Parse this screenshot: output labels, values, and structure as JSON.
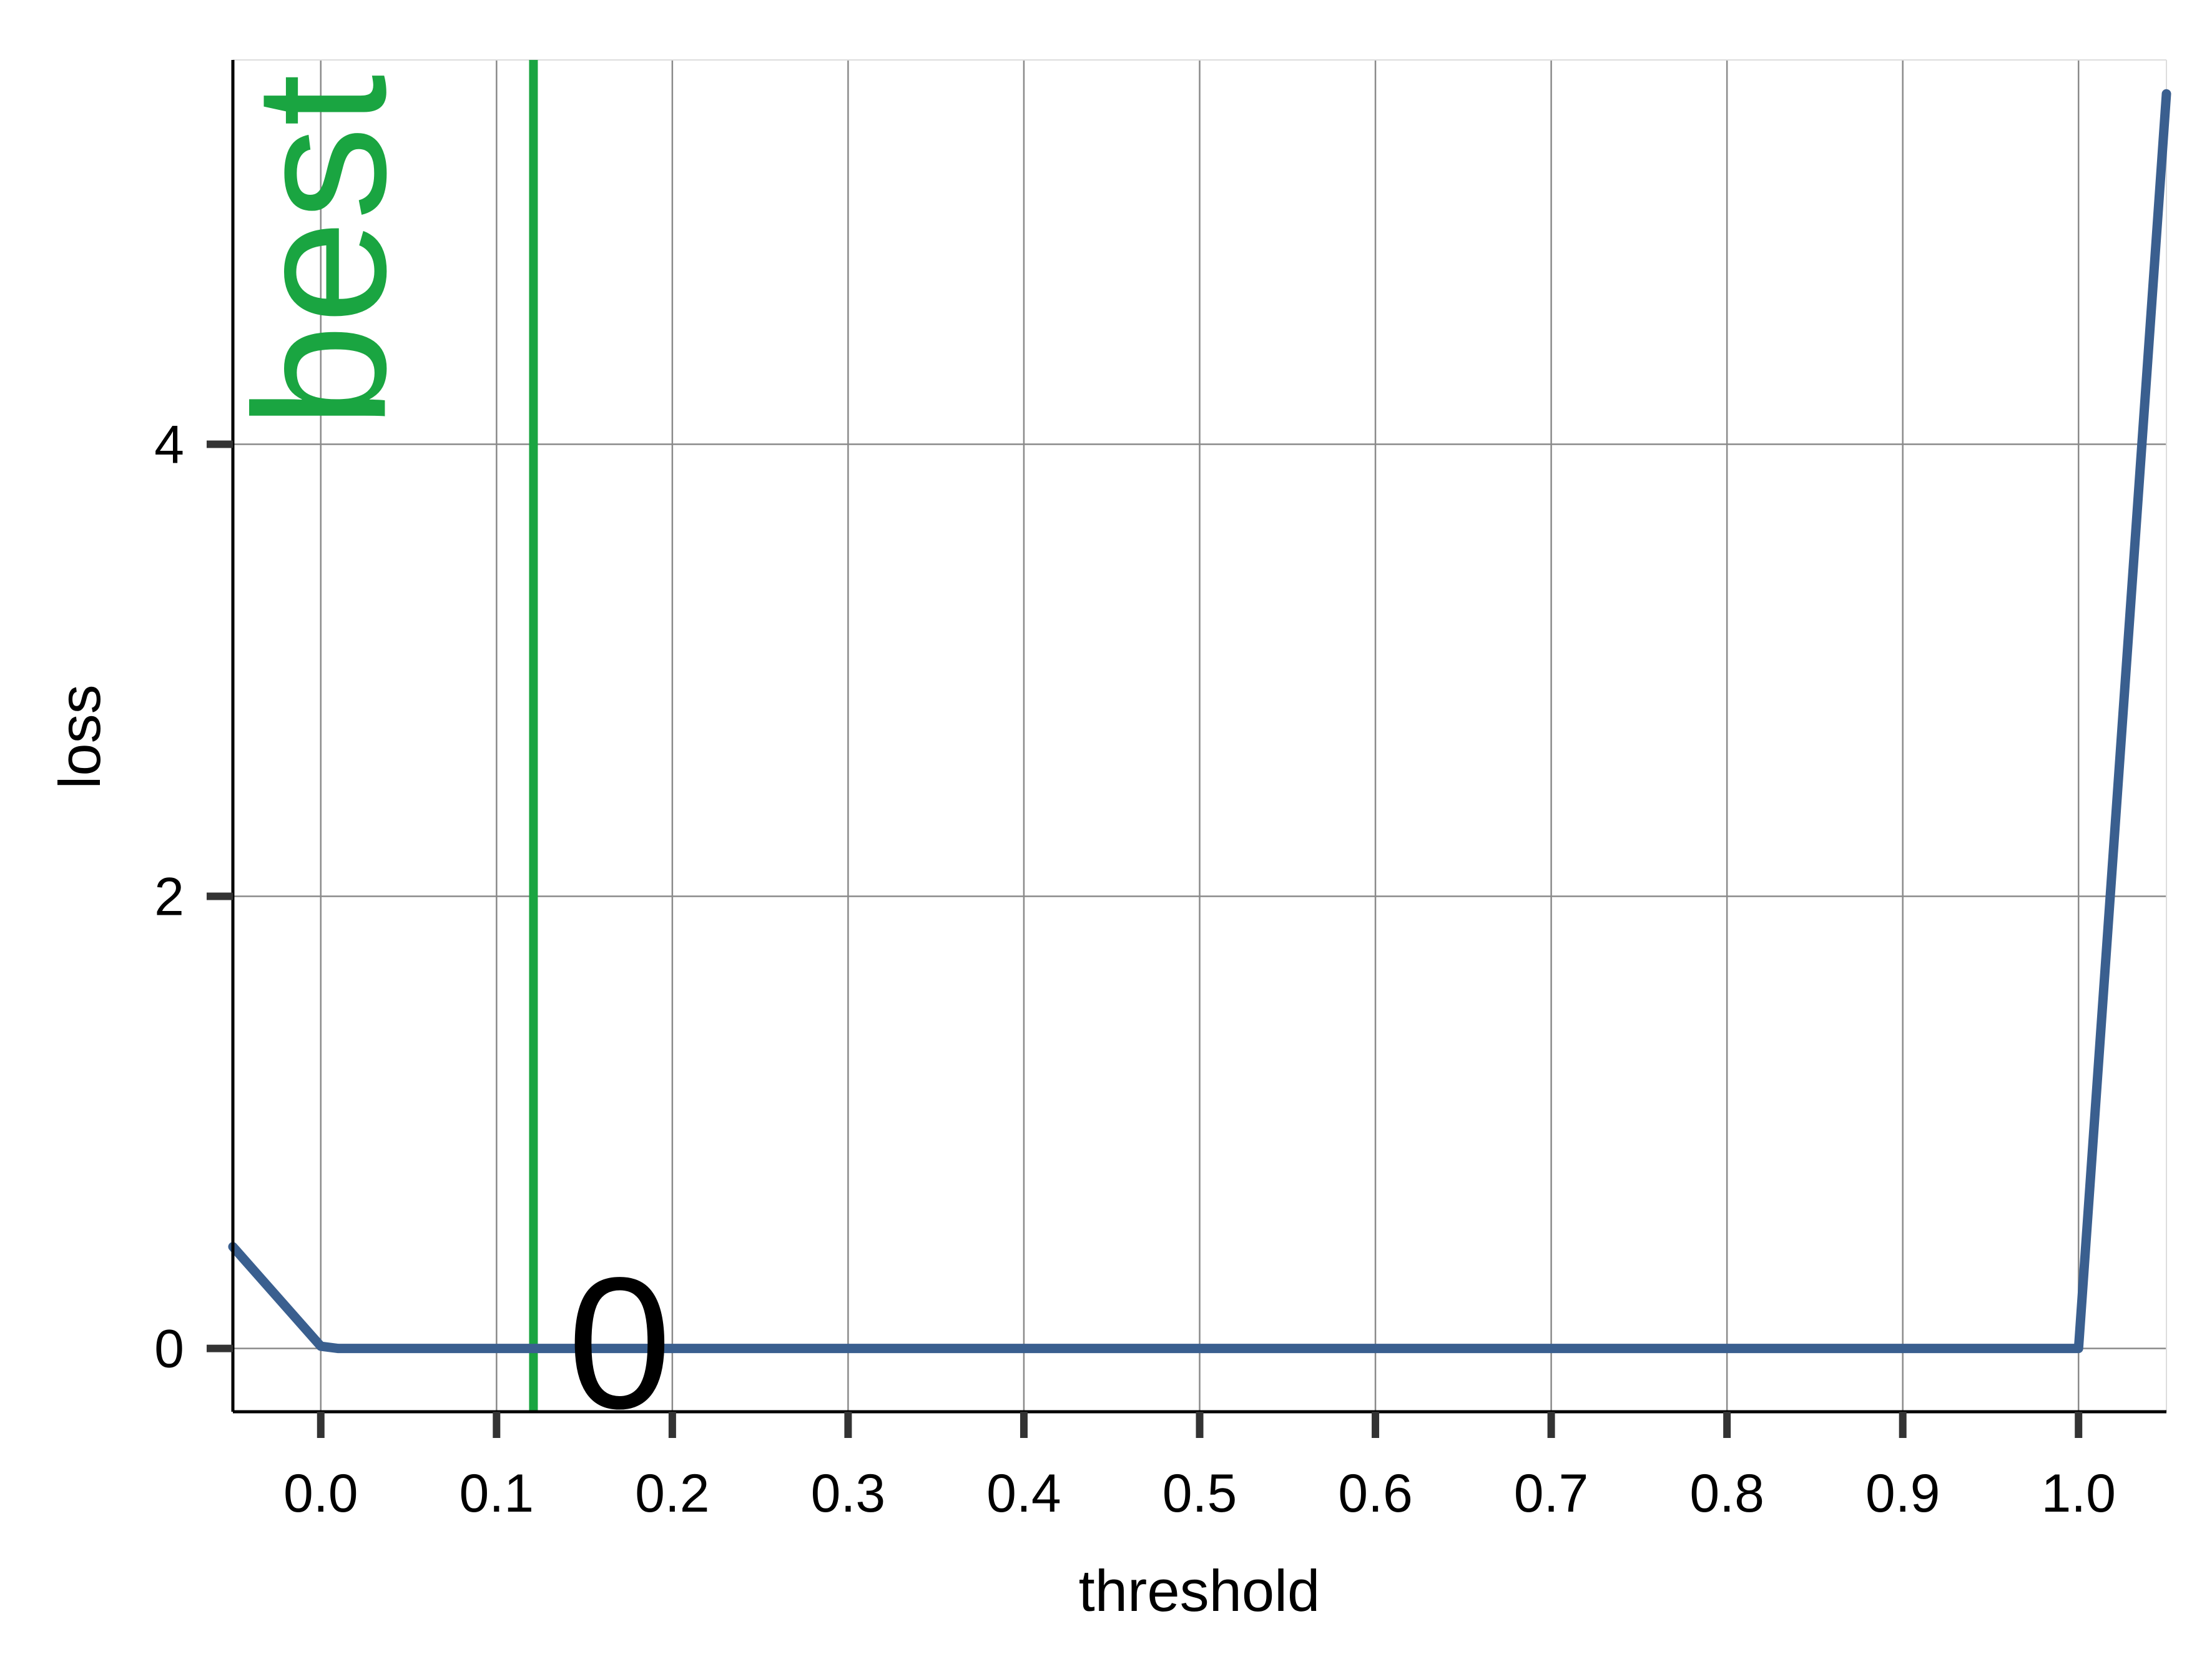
{
  "chart_data": {
    "type": "line",
    "title": "",
    "xlabel": "threshold",
    "ylabel": "loss",
    "xlim": [
      -0.05,
      1.05
    ],
    "ylim": [
      -0.28,
      5.7
    ],
    "x_ticks": [
      0.0,
      0.1,
      0.2,
      0.3,
      0.4,
      0.5,
      0.6,
      0.7,
      0.8,
      0.9,
      1.0
    ],
    "x_tick_labels": [
      "0.0",
      "0.1",
      "0.2",
      "0.3",
      "0.4",
      "0.5",
      "0.6",
      "0.7",
      "0.8",
      "0.9",
      "1.0"
    ],
    "y_ticks": [
      0,
      2,
      4
    ],
    "y_tick_labels": [
      "0",
      "2",
      "4"
    ],
    "grid": true,
    "series": [
      {
        "color": "#3a5f8f",
        "x": [
          -0.05,
          0.0,
          0.01,
          0.1,
          0.2,
          0.3,
          0.4,
          0.5,
          0.6,
          0.7,
          0.8,
          0.9,
          1.0,
          1.05
        ],
        "y": [
          0.45,
          0.01,
          0.0,
          0.0,
          0.0,
          0.0,
          0.0,
          0.0,
          0.0,
          0.0,
          0.0,
          0.0,
          0.0,
          5.55
        ]
      }
    ],
    "vline": {
      "x": 0.121,
      "label": "best",
      "color": "#1aa541"
    },
    "annotation": {
      "text": "0",
      "x": 0.17,
      "y": 0
    }
  }
}
